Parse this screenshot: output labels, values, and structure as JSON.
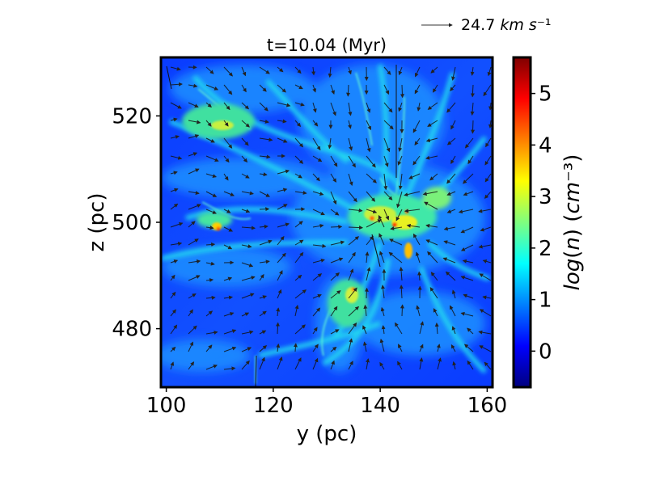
{
  "chart_data": {
    "type": "heatmap",
    "title": "t=10.04 (Myr)",
    "xlabel": "y (pc)",
    "ylabel": "z (pc)",
    "xlim": [
      99,
      161
    ],
    "ylim": [
      469,
      531
    ],
    "x_ticks": [
      100,
      120,
      140,
      160
    ],
    "y_ticks": [
      480,
      500,
      520
    ],
    "colorbar": {
      "label": "log(n) (cm⁻³)",
      "label_parts": [
        "log",
        "(",
        "n",
        ")",
        " (",
        "cm",
        "⁻³",
        ")"
      ],
      "range": [
        -0.7,
        5.7
      ],
      "ticks": [
        0,
        1,
        2,
        3,
        4,
        5
      ],
      "colormap": "jet",
      "colors": [
        "#00007f",
        "#0000ff",
        "#007fff",
        "#00ffff",
        "#7fff7f",
        "#ffff00",
        "#ff7f00",
        "#ff0000",
        "#7f0000"
      ]
    },
    "quiver_key": {
      "value": "24.7",
      "units": "km s⁻¹",
      "unit_parts": [
        "km",
        " ",
        "s",
        "⁻¹"
      ]
    },
    "background_value": 0.3,
    "dense_regions": [
      {
        "name": "central-cloud",
        "y": 141,
        "z": 500,
        "peak": 4.3
      },
      {
        "name": "upper-left-filament",
        "y": 112,
        "z": 520,
        "peak": 3.4
      },
      {
        "name": "lower-arc-clumps",
        "y": 135,
        "z": 483,
        "peak": 3.6
      },
      {
        "name": "left-clump",
        "y": 110,
        "z": 500,
        "peak": 3.8
      }
    ],
    "grid": false
  }
}
